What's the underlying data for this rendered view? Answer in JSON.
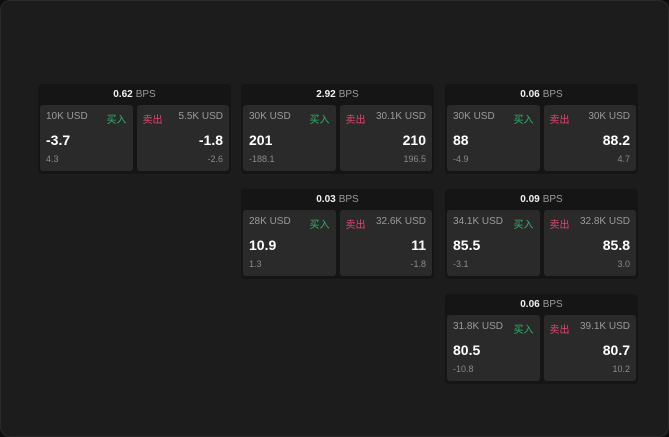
{
  "labels": {
    "bps": "BPS",
    "buy": "买入",
    "sell": "卖出"
  },
  "colors": {
    "buy": "#2fb36a",
    "sell": "#e0466e"
  },
  "cards": [
    {
      "bps": "0.62",
      "bid_size": "10K USD",
      "bid": "-3.7",
      "bid_change": "4.3",
      "ask_size": "5.5K USD",
      "ask": "-1.8",
      "ask_change": "-2.6"
    },
    {
      "bps": "2.92",
      "bid_size": "30K USD",
      "bid": "201",
      "bid_change": "-188.1",
      "ask_size": "30.1K USD",
      "ask": "210",
      "ask_change": "196.5"
    },
    {
      "bps": "0.06",
      "bid_size": "30K USD",
      "bid": "88",
      "bid_change": "-4.9",
      "ask_size": "30K USD",
      "ask": "88.2",
      "ask_change": "4.7"
    },
    {
      "bps": "0.03",
      "bid_size": "28K USD",
      "bid": "10.9",
      "bid_change": "1.3",
      "ask_size": "32.6K USD",
      "ask": "11",
      "ask_change": "-1.8"
    },
    {
      "bps": "0.09",
      "bid_size": "34.1K USD",
      "bid": "85.5",
      "bid_change": "-3.1",
      "ask_size": "32.8K USD",
      "ask": "85.8",
      "ask_change": "3.0"
    },
    {
      "bps": "0.06",
      "bid_size": "31.8K USD",
      "bid": "80.5",
      "bid_change": "-10.8",
      "ask_size": "39.1K USD",
      "ask": "80.7",
      "ask_change": "10.2"
    }
  ]
}
